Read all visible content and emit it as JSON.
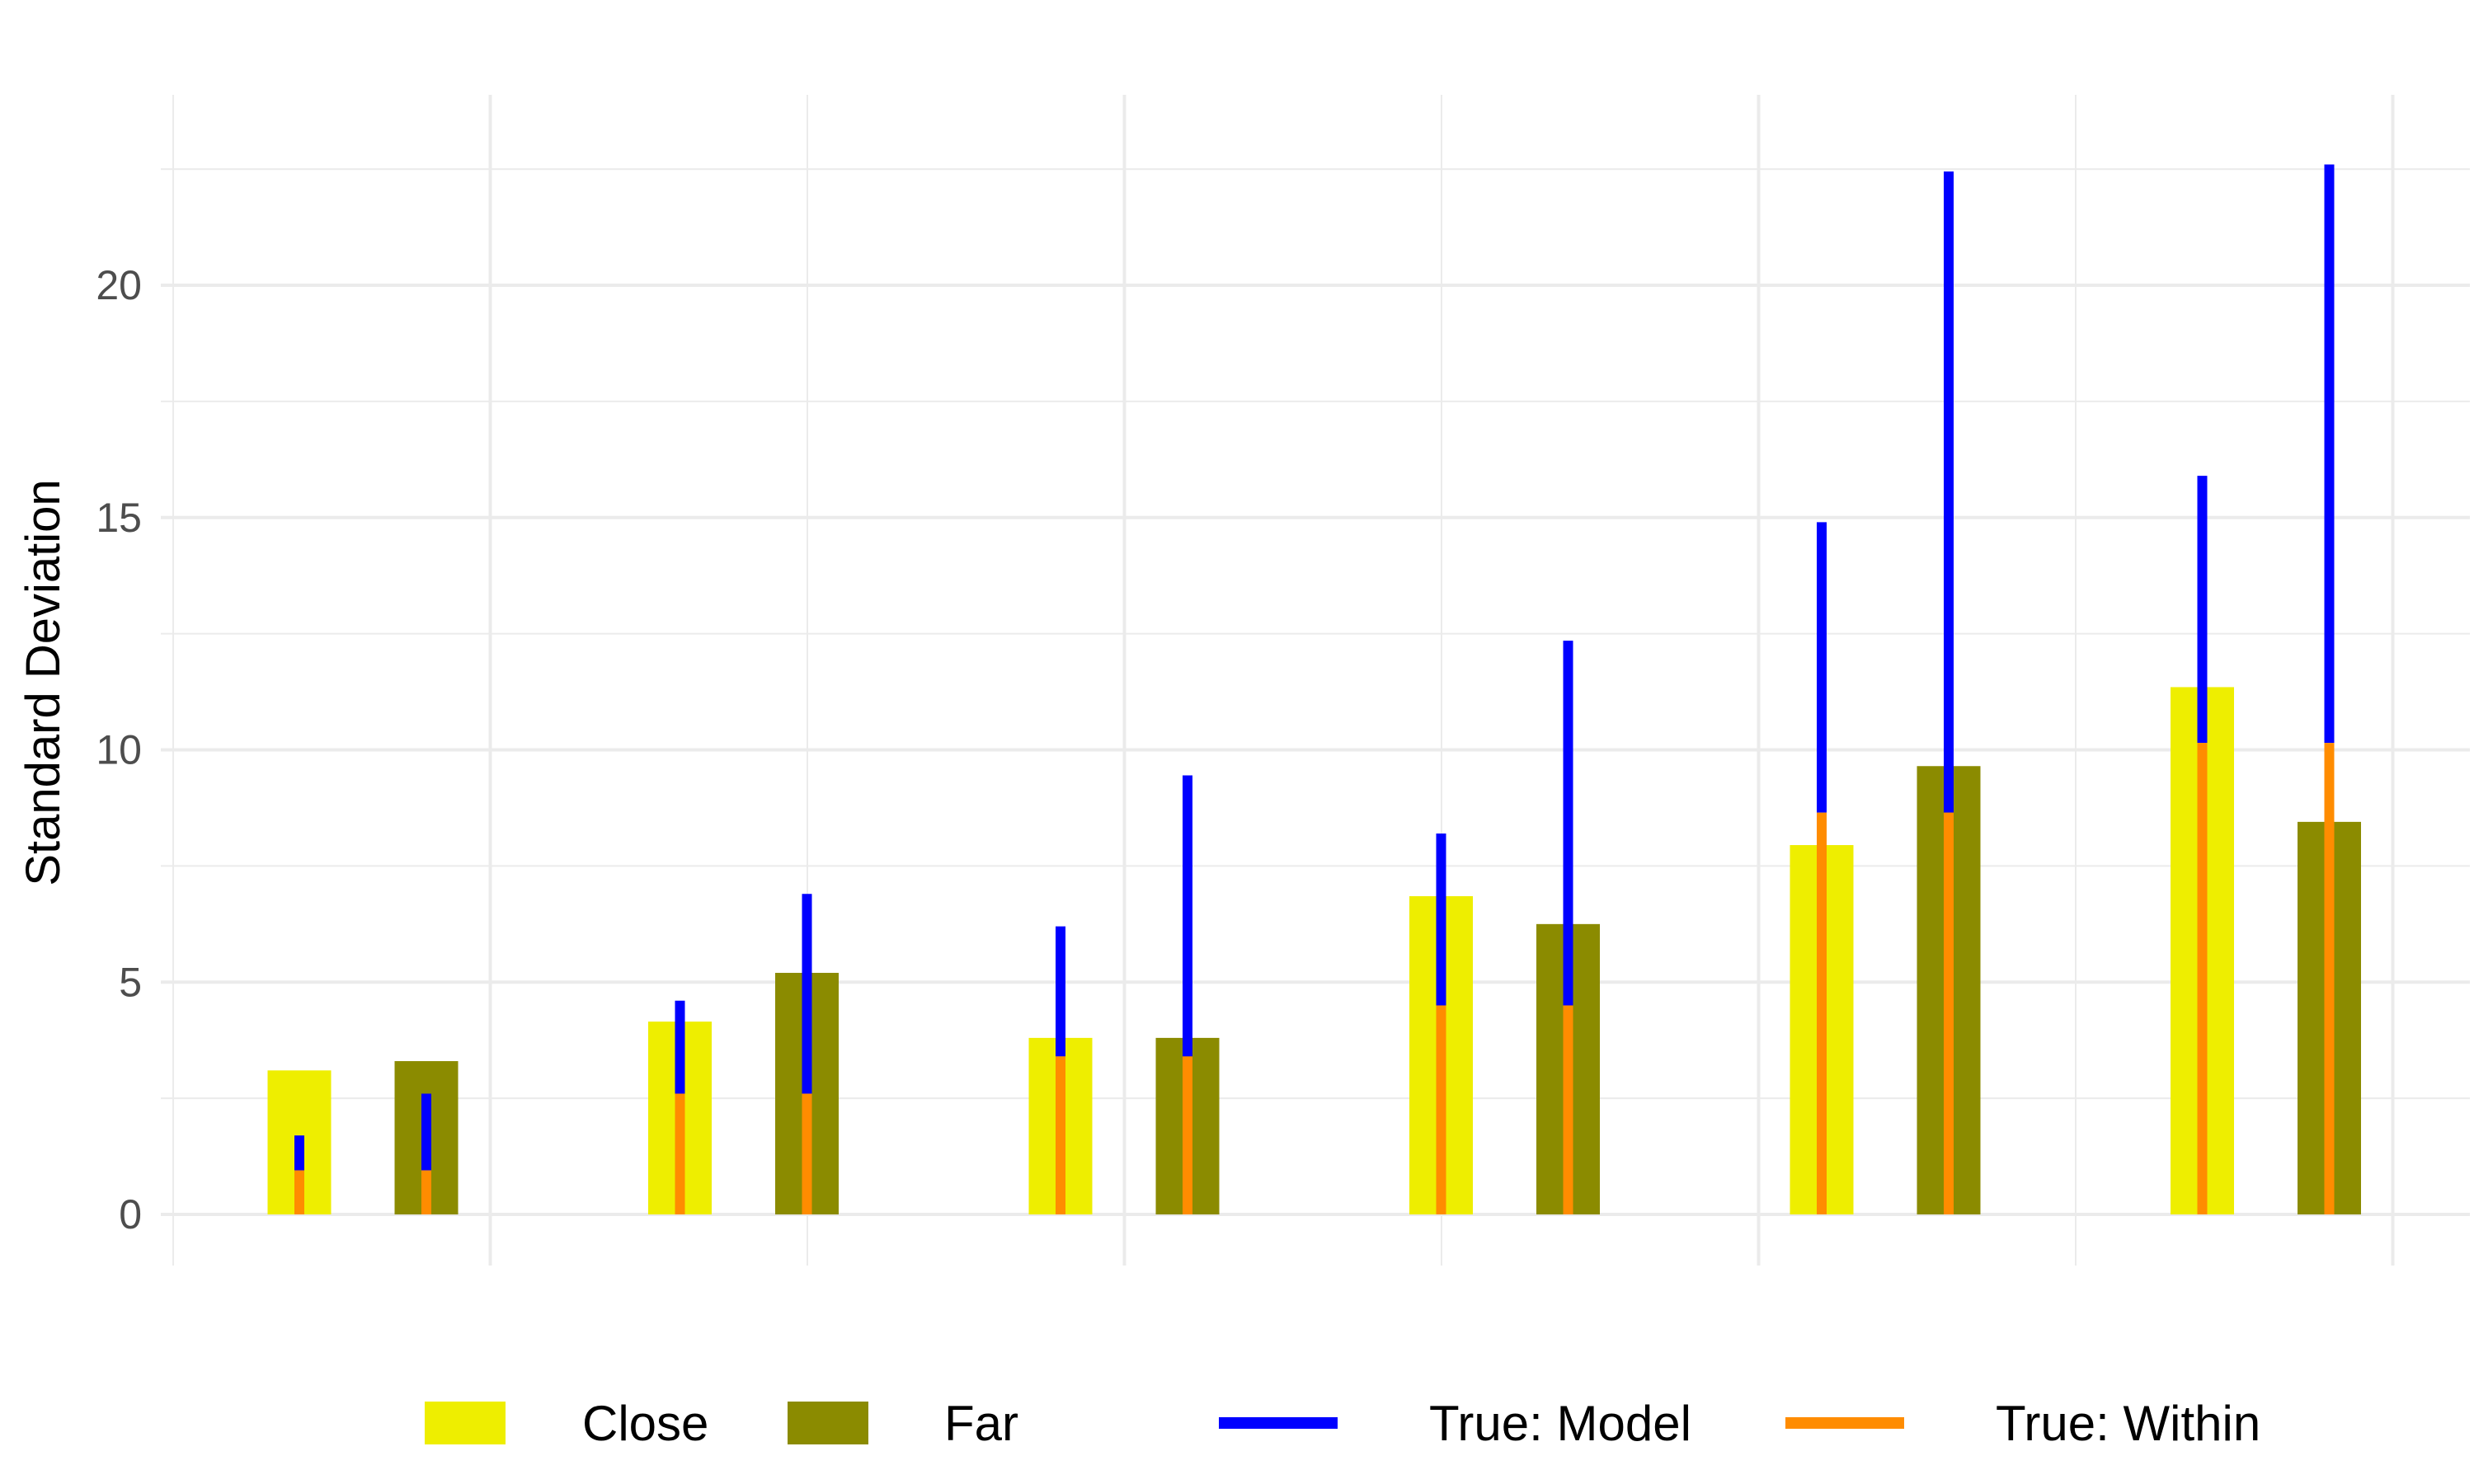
{
  "chart_data": {
    "type": "bar",
    "ylabel": "Standard Deviation",
    "ylim": [
      -1.1,
      24.1
    ],
    "y_ticks": [
      0,
      5,
      10,
      15,
      20
    ],
    "y_tick_labels": [
      "0",
      "5",
      "10",
      "15",
      "20"
    ],
    "grid": true,
    "groups": 6,
    "series": [
      {
        "name": "Close",
        "color": "#eeee00",
        "values": [
          3.1,
          4.15,
          3.8,
          6.85,
          7.95,
          11.35
        ]
      },
      {
        "name": "Far",
        "color": "#8b8b00",
        "values": [
          3.3,
          5.2,
          3.8,
          6.25,
          9.65,
          8.45
        ]
      }
    ],
    "true_model": {
      "name": "True: Model",
      "color": "#0000ff",
      "close": [
        1.7,
        4.6,
        6.2,
        8.2,
        14.9,
        15.9
      ],
      "far": [
        2.6,
        6.9,
        9.45,
        12.35,
        22.45,
        22.6
      ]
    },
    "true_within": {
      "name": "True: Within",
      "color": "#ff8c00",
      "values": [
        0.95,
        2.6,
        3.4,
        4.5,
        8.65,
        10.15
      ]
    },
    "legend": {
      "position": "bottom",
      "items": [
        "Close",
        "Far",
        "True: Model",
        "True: Within"
      ]
    }
  }
}
